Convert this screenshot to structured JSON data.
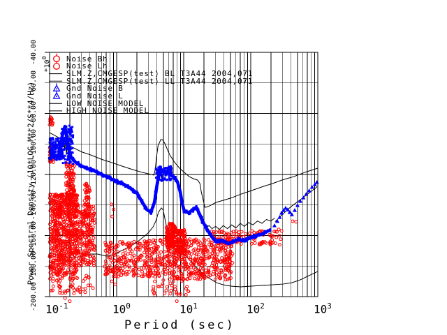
{
  "colors": {
    "red": "#ff0000",
    "blue": "#0000ff",
    "black": "#000000",
    "background": "#ffffff"
  },
  "legend": {
    "rows": [
      {
        "label": "Noise Bh",
        "symbol": "circle",
        "color": "#ff0000"
      },
      {
        "label": "Noise Lh",
        "symbol": "circle",
        "color": "#ff0000"
      },
      {
        "label": "SLM.Z,CMGESP(test) BL T3A44 2004,071",
        "symbol": "line",
        "color": "#000000"
      },
      {
        "label": "SLM.Z,CMGESP(test) LL T3A44 2004,071",
        "symbol": "line",
        "color": "#000000"
      },
      {
        "label": "Gnd Noise B",
        "symbol": "triangle",
        "color": "#0000ff"
      },
      {
        "label": "Gnd Noise L",
        "symbol": "triangle",
        "color": "#0000ff"
      },
      {
        "label": "LOW NOISE MODEL",
        "symbol": "line",
        "color": "#000000"
      },
      {
        "label": "HIGH NOISE MODEL",
        "symbol": "line",
        "color": "#000000"
      }
    ]
  },
  "axes": {
    "x": {
      "title": "Period (sec)",
      "ticks": [
        {
          "b": "10",
          "e": "-1"
        },
        {
          "b": "10",
          "e": "0"
        },
        {
          "b": "10",
          "e": "1"
        },
        {
          "b": "10",
          "e": "2"
        },
        {
          "b": "10",
          "e": "3"
        }
      ]
    },
    "y": {
      "title": "Power Spectral Density (10*LOG M**2/S**4/Hz)",
      "multiplier_base": "*10",
      "multiplier_exp": "0",
      "ticks": [
        "-40.00",
        "-60.00",
        "-80.00",
        "-100.00",
        "-120.00",
        "-140.00",
        "-160.00",
        "-180.00",
        "-200.00"
      ]
    }
  },
  "chart_data": {
    "type": "scatter",
    "title": "",
    "xlabel": "Period (sec)",
    "ylabel": "Power Spectral Density (10*LOG M**2/S**4/Hz)",
    "x_scale": "log",
    "xlim": [
      0.1,
      1000
    ],
    "ylim": [
      -200,
      -40
    ],
    "y_tick_step": 20,
    "grid": "log-x-minor-and-major, y-major",
    "legend_position": "top-left-inside",
    "series": [
      {
        "name": "LOW NOISE MODEL",
        "type": "line",
        "color": "#000000",
        "points": [
          [
            0.1,
            -171.2
          ],
          [
            0.14,
            -173.2
          ],
          [
            0.2,
            -174.4
          ],
          [
            0.29,
            -173.9
          ],
          [
            0.39,
            -172.1
          ],
          [
            0.52,
            -172.1
          ],
          [
            0.7,
            -173.5
          ],
          [
            0.88,
            -172.6
          ],
          [
            1.13,
            -170.3
          ],
          [
            1.45,
            -168
          ],
          [
            1.95,
            -164.8
          ],
          [
            2.55,
            -160.7
          ],
          [
            2.94,
            -158.4
          ],
          [
            3.5,
            -154.3
          ],
          [
            3.9,
            -149.8
          ],
          [
            4.2,
            -144.7
          ],
          [
            4.65,
            -141.9
          ],
          [
            4.95,
            -143.3
          ],
          [
            5.47,
            -152.9
          ],
          [
            6.2,
            -160.2
          ],
          [
            6.95,
            -164.3
          ],
          [
            8.3,
            -168.4
          ],
          [
            9.7,
            -171.2
          ],
          [
            11.8,
            -175.3
          ],
          [
            15.1,
            -180.3
          ],
          [
            19.1,
            -184.9
          ],
          [
            24.3,
            -188.1
          ],
          [
            30.9,
            -190.9
          ],
          [
            39,
            -192.3
          ],
          [
            52.1,
            -193.2
          ],
          [
            71.2,
            -193.6
          ],
          [
            146,
            -192.7
          ],
          [
            302,
            -191.8
          ],
          [
            410,
            -190.9
          ],
          [
            548,
            -189
          ],
          [
            733,
            -186.3
          ],
          [
            1000,
            -183.5
          ]
        ]
      },
      {
        "name": "HIGH NOISE MODEL",
        "type": "line",
        "color": "#000000",
        "points": [
          [
            0.1,
            -92.6
          ],
          [
            0.15,
            -96.8
          ],
          [
            0.2,
            -101.3
          ],
          [
            0.3,
            -105.2
          ],
          [
            0.41,
            -107.2
          ],
          [
            0.6,
            -110.1
          ],
          [
            0.85,
            -112.2
          ],
          [
            1.2,
            -114.5
          ],
          [
            1.74,
            -116.8
          ],
          [
            2.4,
            -118.6
          ],
          [
            2.94,
            -119.5
          ],
          [
            3.4,
            -120.2
          ],
          [
            3.6,
            -120.4
          ],
          [
            3.75,
            -117
          ],
          [
            3.95,
            -108
          ],
          [
            4.15,
            -101
          ],
          [
            4.33,
            -99.4
          ],
          [
            4.55,
            -97.1
          ],
          [
            4.85,
            -97.3
          ],
          [
            5.2,
            -99.5
          ],
          [
            6.2,
            -107.2
          ],
          [
            7.3,
            -112
          ],
          [
            8.7,
            -115.9
          ],
          [
            10.3,
            -118.8
          ],
          [
            12.1,
            -121.4
          ],
          [
            14,
            -122.8
          ],
          [
            16.2,
            -123.7
          ],
          [
            17.5,
            -126
          ],
          [
            18.3,
            -131.4
          ],
          [
            19.5,
            -136.5
          ],
          [
            20.7,
            -141.5
          ],
          [
            22,
            -141.3
          ],
          [
            24.3,
            -140.6
          ],
          [
            30,
            -138.4
          ],
          [
            50.1,
            -135.5
          ],
          [
            70,
            -133
          ],
          [
            103,
            -130.5
          ],
          [
            150,
            -128
          ],
          [
            213,
            -125.9
          ],
          [
            300,
            -123.5
          ],
          [
            438,
            -121.4
          ],
          [
            650,
            -118.5
          ],
          [
            1000,
            -115.9
          ]
        ]
      },
      {
        "name": "SLM.Z,CMGESP(test) BL",
        "type": "line",
        "color": "#000000",
        "paths": [
          [
            [
              0.158,
              -93
            ],
            [
              0.163,
              -99
            ],
            [
              0.168,
              -104
            ],
            [
              0.173,
              -96
            ],
            [
              0.178,
              -107
            ],
            [
              0.184,
              -100
            ],
            [
              0.19,
              -109
            ]
          ],
          [
            [
              21,
              -155
            ],
            [
              24,
              -153.5
            ],
            [
              26.5,
              -155.5
            ],
            [
              30,
              -154
            ],
            [
              34,
              -156
            ],
            [
              39,
              -153.5
            ],
            [
              45,
              -155.5
            ],
            [
              52,
              -153
            ],
            [
              60,
              -155
            ],
            [
              70,
              -152
            ],
            [
              80,
              -154
            ],
            [
              93,
              -151.5
            ],
            [
              108,
              -153
            ],
            [
              126,
              -150.5
            ],
            [
              147,
              -152
            ],
            [
              172,
              -149.5
            ],
            [
              200,
              -150.5
            ],
            [
              228,
              -148.5
            ]
          ]
        ]
      },
      {
        "name": "SLM.Z,CMGESP(test) LL",
        "type": "line",
        "color": "#000000",
        "points": [
          [
            230,
            -151
          ],
          [
            300,
            -146
          ],
          [
            400,
            -141
          ],
          [
            550,
            -136.5
          ],
          [
            750,
            -132
          ],
          [
            980,
            -128
          ]
        ]
      },
      {
        "name": "Noise Bh",
        "type": "scatter",
        "marker": "circle",
        "color": "#ff0000",
        "clusters": [
          {
            "p": [
              0.1,
              0.26
            ],
            "db": [
              -133,
              -186
            ],
            "n": 700,
            "bias": 1.25
          },
          {
            "p": [
              0.26,
              0.47
            ],
            "db": [
              -140,
              -180
            ],
            "n": 200
          },
          {
            "p": [
              0.175,
              0.235
            ],
            "db": [
              -112,
              -135
            ],
            "n": 85
          },
          {
            "p": [
              0.33,
              0.4
            ],
            "db": [
              -124,
              -148
            ],
            "n": 50
          },
          {
            "p": [
              0.1,
              0.45
            ],
            "db": [
              -186,
              -198
            ],
            "n": 55
          },
          {
            "p": [
              0.1,
              0.112
            ],
            "db": [
              -80,
              -88
            ],
            "n": 12
          },
          {
            "p": [
              0.1,
              0.115
            ],
            "db": [
              -101,
              -112
            ],
            "n": 25
          }
        ],
        "points": [
          [
            0.84,
            -139.6
          ],
          [
            0.9,
            -142.9
          ],
          [
            0.86,
            -147.5
          ],
          [
            0.85,
            -190
          ],
          [
            0.95,
            -192
          ],
          [
            0.17,
            -201
          ],
          [
            0.2,
            -203
          ]
        ]
      },
      {
        "name": "Noise Lh",
        "type": "scatter",
        "marker": "circle",
        "color": "#ff0000",
        "clusters": [
          {
            "p": [
              0.66,
              5.5
            ],
            "db": [
              -162,
              -187
            ],
            "n": 300,
            "bias": 0.9
          },
          {
            "p": [
              5.5,
              7.5
            ],
            "db": [
              -152,
              -168
            ],
            "n": 150
          },
          {
            "p": [
              7.5,
              10.5
            ],
            "db": [
              -156,
              -172
            ],
            "n": 130
          },
          {
            "p": [
              5.5,
              54
            ],
            "db": [
              -162,
              -189
            ],
            "n": 430
          },
          {
            "p": [
              3.4,
              12
            ],
            "db": [
              -189,
              -200
            ],
            "n": 28
          },
          {
            "p": [
              24,
              280
            ],
            "db": [
              -157,
              -166
            ],
            "n": 110
          }
        ],
        "points": [
          [
            234,
            -165
          ],
          [
            270,
            -166
          ],
          [
            262,
            -156
          ],
          [
            288,
            -157
          ],
          [
            421,
            -150.6
          ],
          [
            473,
            -151
          ],
          [
            6.5,
            -196
          ],
          [
            7.3,
            -187
          ],
          [
            7.9,
            -203
          ],
          [
            8.6,
            -199
          ],
          [
            3.7,
            -190
          ],
          [
            4.3,
            -193.5
          ]
        ]
      },
      {
        "name": "Gnd Noise B",
        "type": "band",
        "marker": "square",
        "color": "#0000ff",
        "band_points": [
          [
            0.1,
            -110
          ],
          [
            0.112,
            -106.5
          ],
          [
            0.125,
            -108
          ],
          [
            0.133,
            -109
          ],
          [
            0.142,
            -104
          ],
          [
            0.15,
            -97
          ],
          [
            0.169,
            -88.5
          ],
          [
            0.186,
            -99.4
          ],
          [
            0.205,
            -108
          ],
          [
            0.243,
            -112
          ],
          [
            0.301,
            -114.5
          ],
          [
            0.383,
            -116.3
          ],
          [
            0.499,
            -118.2
          ],
          [
            0.664,
            -120.9
          ],
          [
            0.905,
            -123.7
          ],
          [
            1.21,
            -125.9
          ],
          [
            1.58,
            -128.7
          ],
          [
            2.01,
            -132.3
          ],
          [
            2.43,
            -138.3
          ],
          [
            2.8,
            -142.9
          ],
          [
            3.24,
            -144.7
          ],
          [
            3.66,
            -138.3
          ],
          [
            4.03,
            -125.9
          ],
          [
            4.33,
            -118.6
          ],
          [
            4.91,
            -117.7
          ],
          [
            5.77,
            -119.1
          ],
          [
            6.95,
            -121.4
          ],
          [
            8.04,
            -124.6
          ],
          [
            8.88,
            -131.4
          ],
          [
            9.53,
            -139.2
          ],
          [
            10.2,
            -143.8
          ],
          [
            11.8,
            -145.1
          ],
          [
            13.6,
            -143.3
          ],
          [
            15.4,
            -141.5
          ],
          [
            16.9,
            -145.1
          ],
          [
            19.1,
            -150.6
          ],
          [
            22.1,
            -155.6
          ],
          [
            26.1,
            -160.7
          ],
          [
            30.9,
            -164.3
          ],
          [
            37.4,
            -163
          ],
          [
            45.3,
            -165.3
          ],
          [
            54.7,
            -163.9
          ],
          [
            66.3,
            -162.5
          ],
          [
            80.3,
            -163.4
          ],
          [
            97.2,
            -161.6
          ],
          [
            117.8,
            -160.2
          ],
          [
            142.7,
            -159.3
          ],
          [
            173,
            -157.5
          ],
          [
            200,
            -156.1
          ]
        ],
        "clusters": [
          {
            "p": [
              0.148,
              0.225
            ],
            "db": [
              -88,
              -113
            ],
            "n": 120
          },
          {
            "p": [
              0.1,
              0.158
            ],
            "db": [
              -96,
              -110.5
            ],
            "n": 140
          },
          {
            "p": [
              3.8,
              6.6
            ],
            "db": [
              -114.5,
              -124.5
            ],
            "n": 90
          }
        ]
      },
      {
        "name": "Gnd Noise L",
        "type": "scatter",
        "marker": "triangle",
        "color": "#0000ff",
        "points": [
          [
            226,
            -153.4
          ],
          [
            249,
            -150.5
          ],
          [
            270,
            -147.9
          ],
          [
            288,
            -145.1
          ],
          [
            309,
            -143.3
          ],
          [
            331,
            -141.9
          ],
          [
            356,
            -142.9
          ],
          [
            381,
            -144.7
          ],
          [
            410,
            -146.1
          ],
          [
            453,
            -143.3
          ],
          [
            498,
            -140.1
          ],
          [
            549,
            -137.4
          ],
          [
            609,
            -135.1
          ],
          [
            672,
            -132.8
          ],
          [
            744,
            -130.5
          ],
          [
            822,
            -128.2
          ],
          [
            905,
            -126.4
          ],
          [
            969,
            -125
          ]
        ]
      }
    ]
  }
}
